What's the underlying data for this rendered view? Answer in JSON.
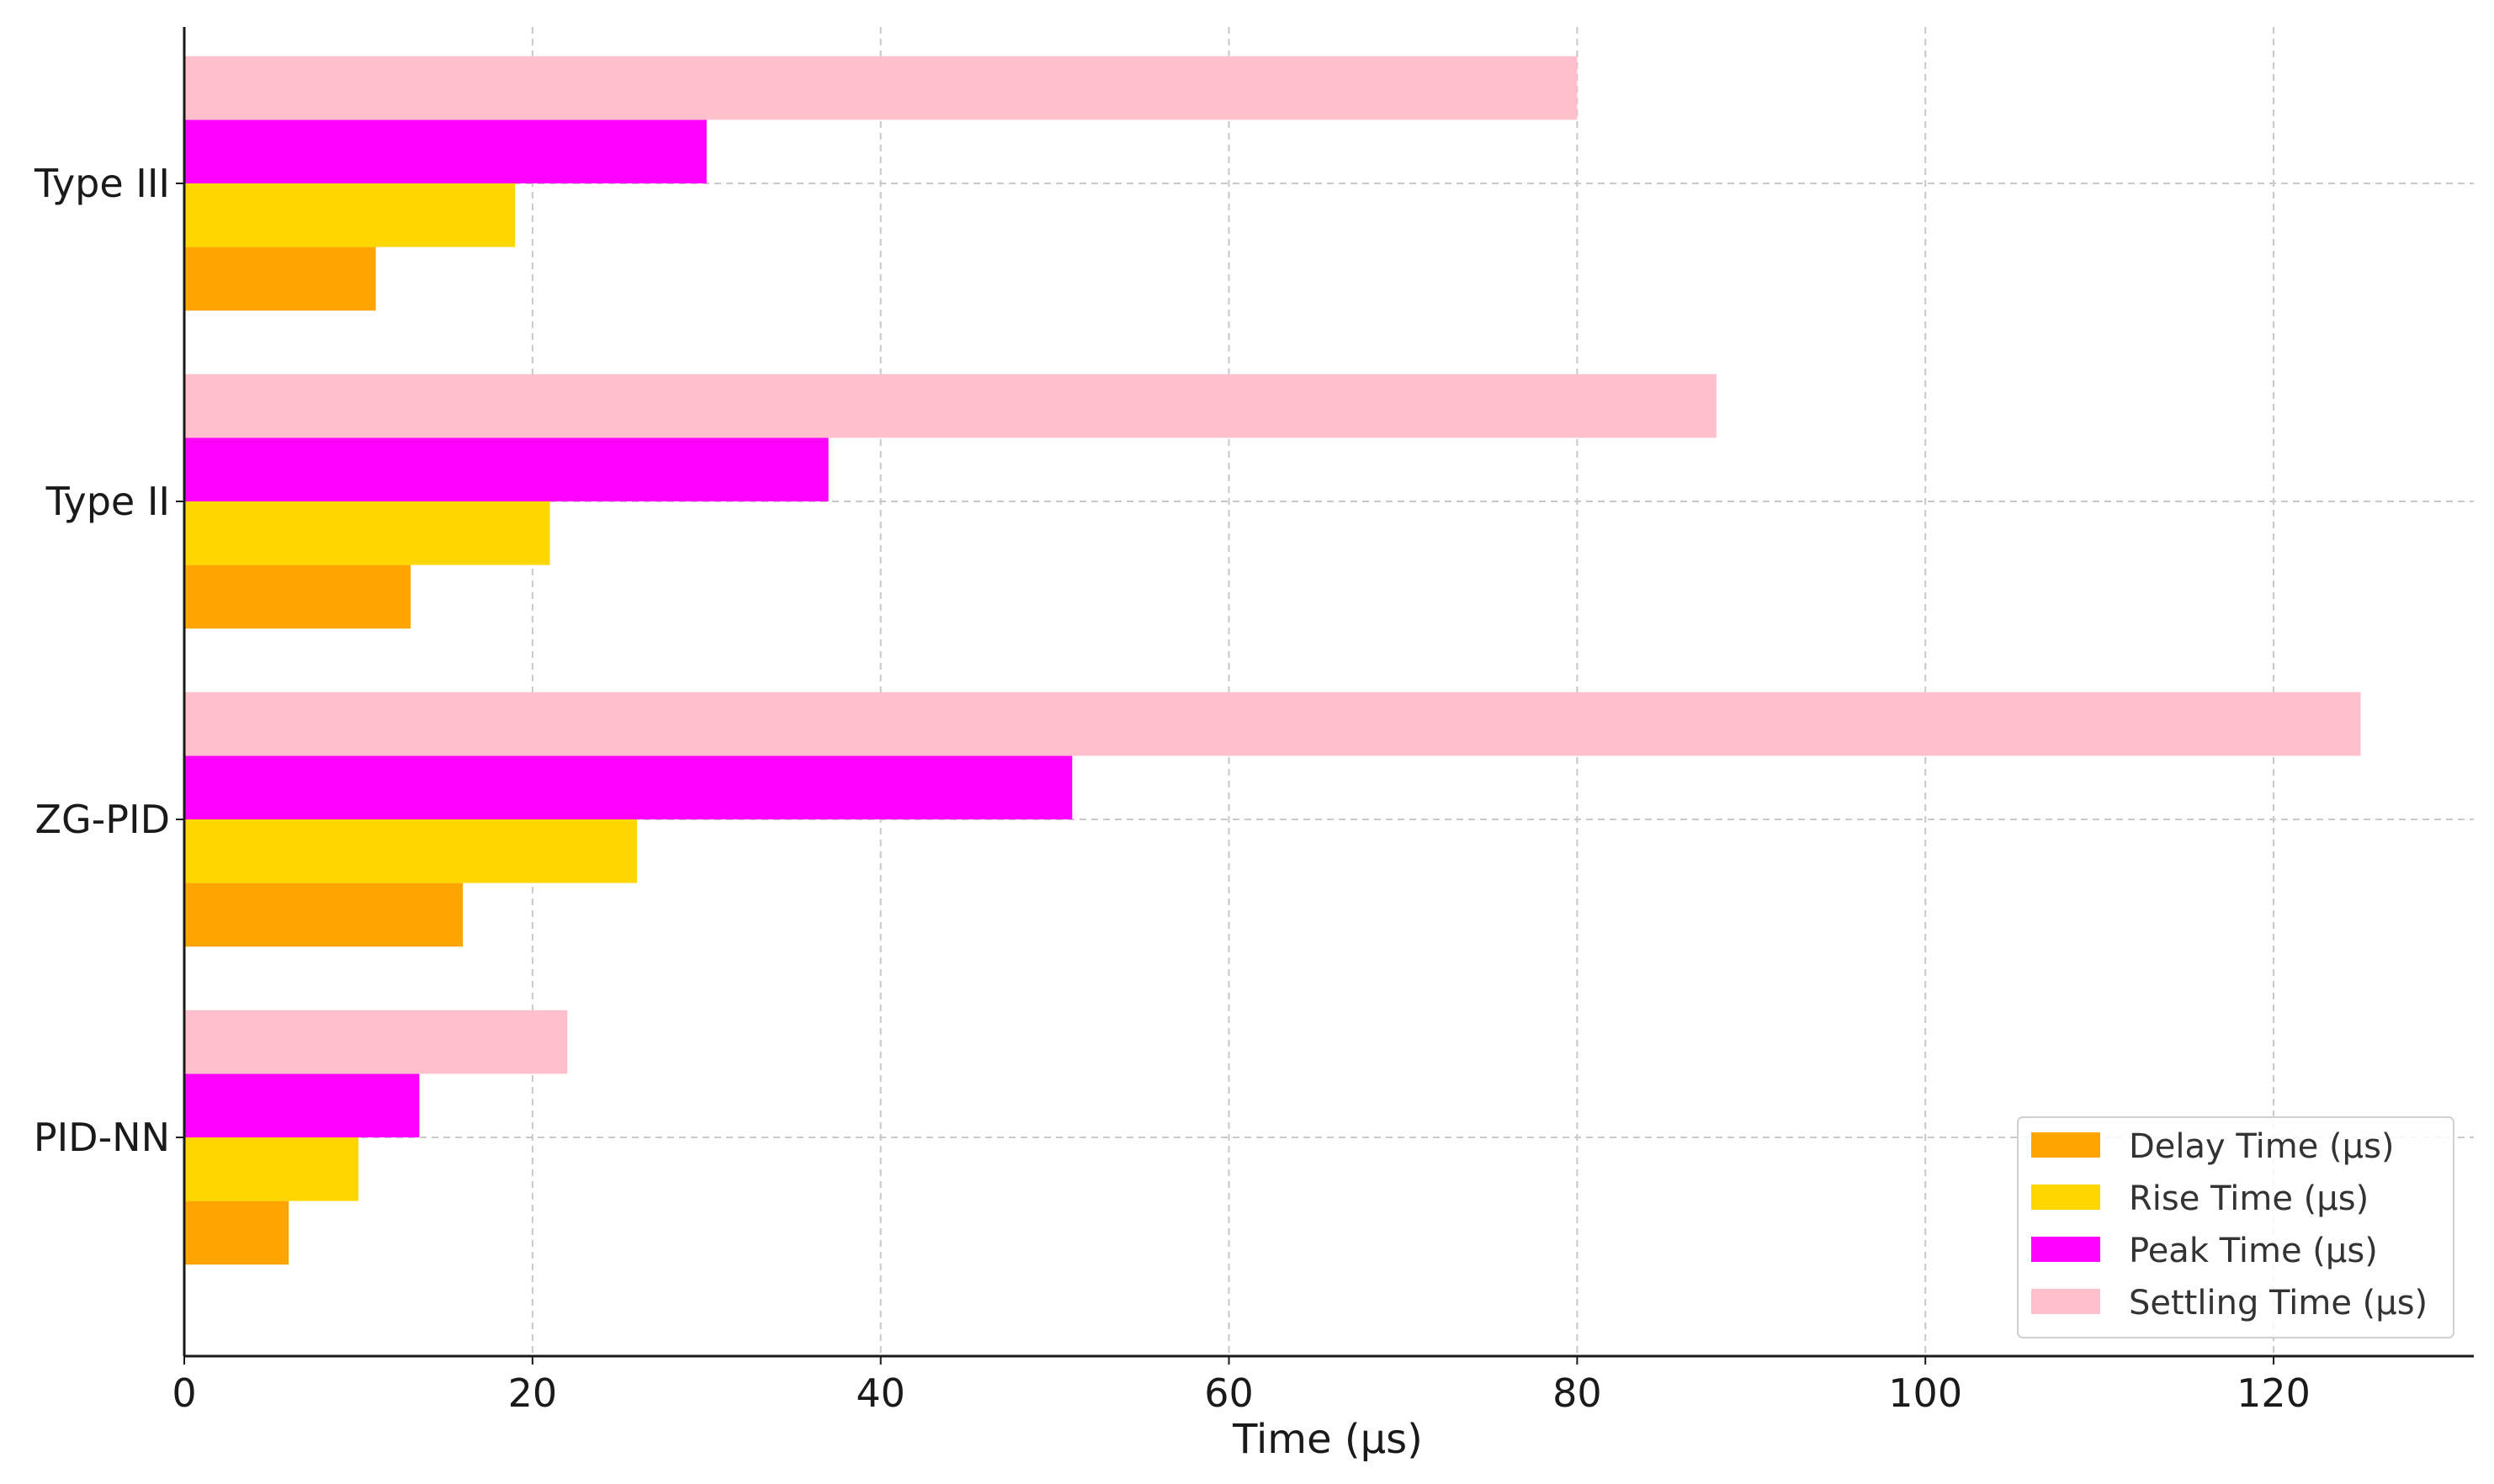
{
  "chart_data": {
    "type": "bar",
    "orientation": "horizontal",
    "title": "",
    "xlabel": "Time (µs)",
    "ylabel": "",
    "xlim": [
      0,
      131.5
    ],
    "xticks": [
      0,
      20,
      40,
      60,
      80,
      100,
      120
    ],
    "xtick_labels": [
      "0",
      "20",
      "40",
      "60",
      "80",
      "100",
      "120"
    ],
    "categories": [
      "Type III",
      "Type II",
      "ZG-PID",
      "PID-NN"
    ],
    "grid": true,
    "legend_position": "bottom-right",
    "series": [
      {
        "name": "Delay Time (µs)",
        "color": "#FFA500",
        "values": [
          11,
          13,
          16,
          6
        ]
      },
      {
        "name": "Rise Time (µs)",
        "color": "#FFD700",
        "values": [
          19,
          21,
          26,
          10
        ]
      },
      {
        "name": "Peak Time (µs)",
        "color": "#FF00FF",
        "values": [
          30,
          37,
          51,
          13.5
        ]
      },
      {
        "name": "Settling Time (µs)",
        "color": "#FFC0CB",
        "values": [
          80,
          88,
          125,
          22
        ]
      }
    ]
  }
}
